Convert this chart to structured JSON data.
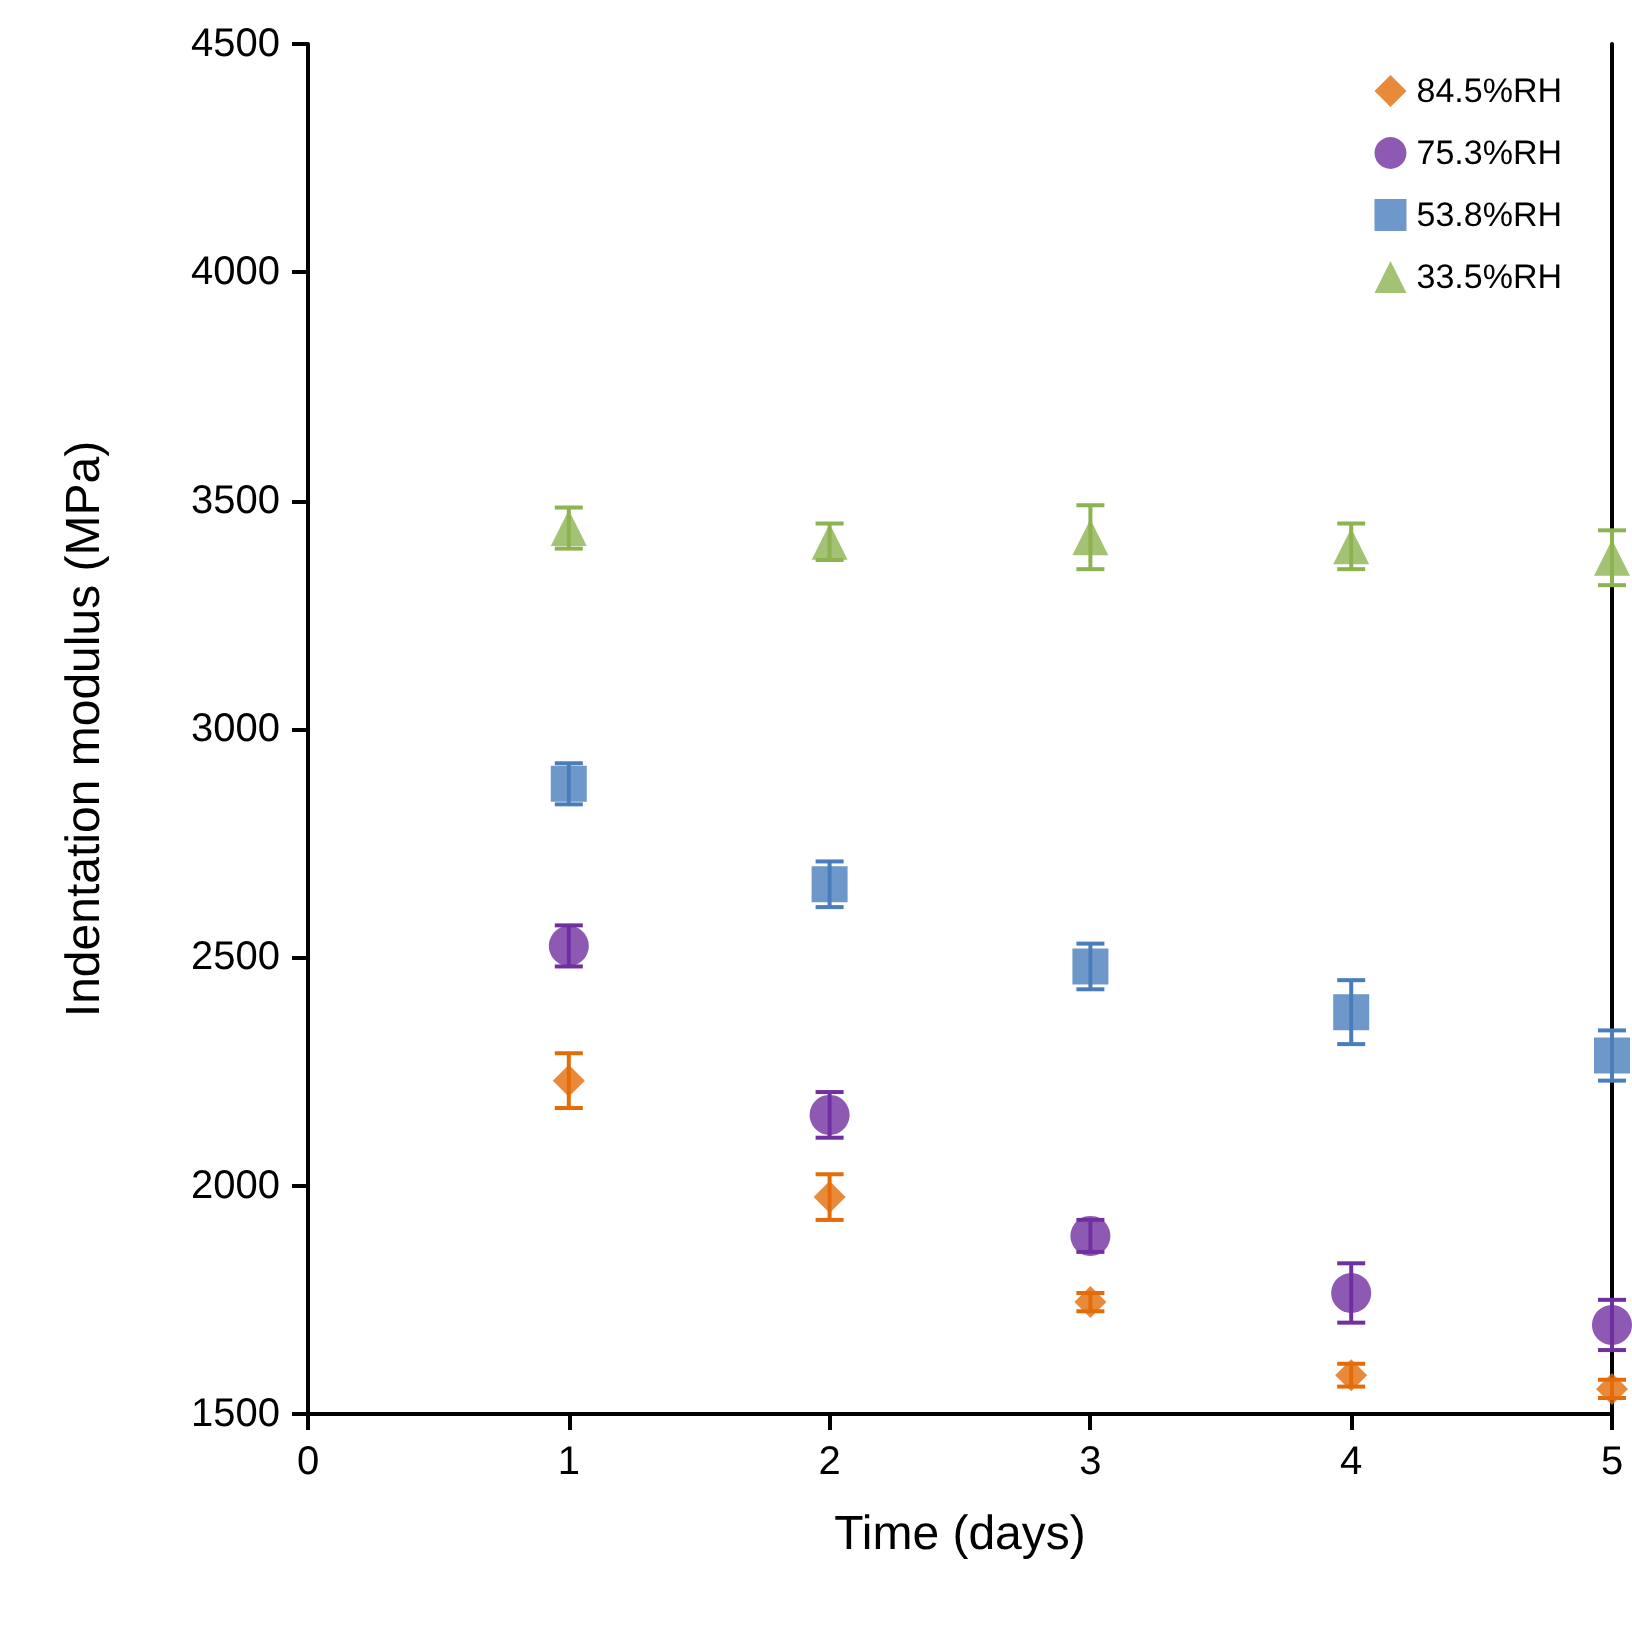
{
  "chart_data": {
    "type": "scatter",
    "xlabel": "Time (days)",
    "ylabel": "Indentation modulus (MPa)",
    "x": [
      1,
      2,
      3,
      4,
      5
    ],
    "series": [
      {
        "name": "84.5%RH",
        "color": "#e36c09",
        "marker": "diamond",
        "values": [
          2230,
          1975,
          1745,
          1585,
          1555
        ],
        "errors": [
          60,
          50,
          20,
          25,
          20
        ]
      },
      {
        "name": "75.3%RH",
        "color": "#7030a0",
        "marker": "circle",
        "values": [
          2525,
          2155,
          1890,
          1765,
          1695
        ],
        "errors": [
          45,
          50,
          35,
          65,
          55
        ]
      },
      {
        "name": "53.8%RH",
        "color": "#4a7ebb",
        "marker": "square",
        "values": [
          2880,
          2660,
          2480,
          2380,
          2285
        ],
        "errors": [
          45,
          50,
          50,
          70,
          55
        ]
      },
      {
        "name": "33.5%RH",
        "color": "#8db350",
        "marker": "triangle",
        "values": [
          3440,
          3410,
          3420,
          3400,
          3375
        ],
        "errors": [
          45,
          40,
          70,
          50,
          60
        ]
      }
    ],
    "xlim": [
      0,
      5
    ],
    "xticks": [
      0,
      1,
      2,
      3,
      4,
      5
    ],
    "ylim": [
      1500,
      4500
    ],
    "yticks": [
      1500,
      2000,
      2500,
      3000,
      3500,
      4000,
      4500
    ],
    "grid": false,
    "legend": "top right"
  }
}
